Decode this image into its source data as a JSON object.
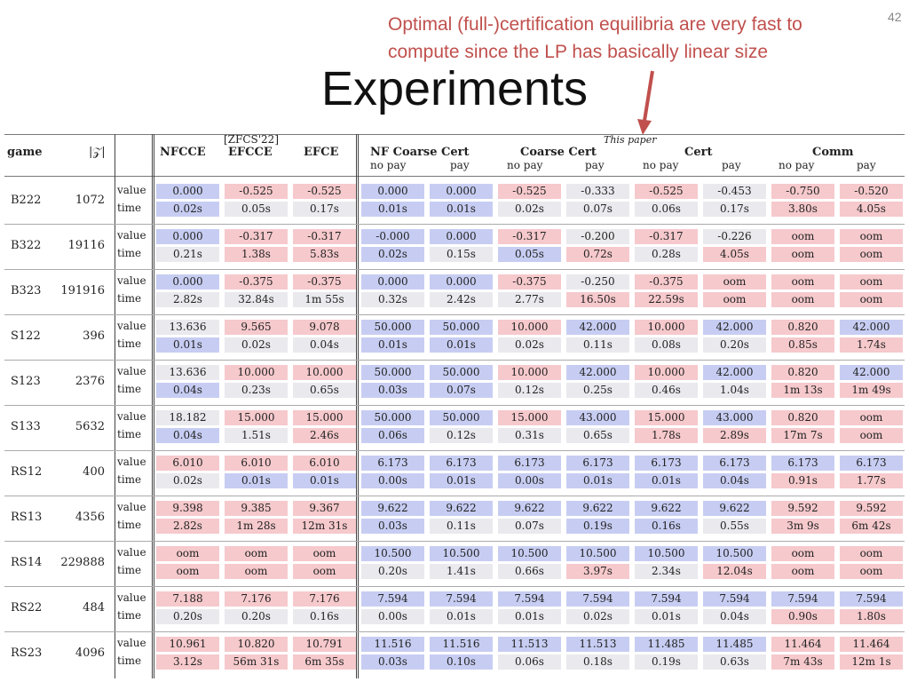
{
  "slide": {
    "title": "Experiments",
    "page_number": "42",
    "annotation_line1": "Optimal (full-)certification equilibria are very fast to",
    "annotation_line2": "compute since the LP has basically linear size",
    "accent_color": "#c0504d"
  },
  "table": {
    "header": {
      "game": "game",
      "z": "|𝒵|",
      "ref": "[ZFCS'22]",
      "this_paper": "This paper",
      "groups": [
        "NFCCE",
        "EFCCE",
        "EFCE",
        "NF Coarse Cert",
        "Coarse Cert",
        "Cert",
        "Comm"
      ],
      "sub": [
        "no pay",
        "pay",
        "no pay",
        "pay",
        "no pay",
        "pay",
        "no pay",
        "pay"
      ]
    },
    "row_labels": {
      "value": "value",
      "time": "time"
    },
    "colors": {
      "red": "#f6c9cc",
      "blue": "#c7cdf2",
      "neutral": "#e9e9ee"
    },
    "rows": [
      {
        "game": "B222",
        "z": "1072",
        "value": [
          "0.000",
          "-0.525",
          "-0.525",
          "0.000",
          "0.000",
          "-0.525",
          "-0.333",
          "-0.525",
          "-0.453",
          "-0.750",
          "-0.520"
        ],
        "time": [
          "0.02s",
          "0.05s",
          "0.17s",
          "0.01s",
          "0.01s",
          "0.02s",
          "0.07s",
          "0.06s",
          "0.17s",
          "3.80s",
          "4.05s"
        ]
      },
      {
        "game": "B322",
        "z": "19116",
        "value": [
          "0.000",
          "-0.317",
          "-0.317",
          "-0.000",
          "0.000",
          "-0.317",
          "-0.200",
          "-0.317",
          "-0.226",
          "oom",
          "oom"
        ],
        "time": [
          "0.21s",
          "1.38s",
          "5.83s",
          "0.02s",
          "0.15s",
          "0.05s",
          "0.72s",
          "0.28s",
          "4.05s",
          "oom",
          "oom"
        ]
      },
      {
        "game": "B323",
        "z": "191916",
        "value": [
          "0.000",
          "-0.375",
          "-0.375",
          "0.000",
          "0.000",
          "-0.375",
          "-0.250",
          "-0.375",
          "oom",
          "oom",
          "oom"
        ],
        "time": [
          "2.82s",
          "32.84s",
          "1m 55s",
          "0.32s",
          "2.42s",
          "2.77s",
          "16.50s",
          "22.59s",
          "oom",
          "oom",
          "oom"
        ]
      },
      {
        "game": "S122",
        "z": "396",
        "value": [
          "13.636",
          "9.565",
          "9.078",
          "50.000",
          "50.000",
          "10.000",
          "42.000",
          "10.000",
          "42.000",
          "0.820",
          "42.000"
        ],
        "time": [
          "0.01s",
          "0.02s",
          "0.04s",
          "0.01s",
          "0.01s",
          "0.02s",
          "0.11s",
          "0.08s",
          "0.20s",
          "0.85s",
          "1.74s"
        ]
      },
      {
        "game": "S123",
        "z": "2376",
        "value": [
          "13.636",
          "10.000",
          "10.000",
          "50.000",
          "50.000",
          "10.000",
          "42.000",
          "10.000",
          "42.000",
          "0.820",
          "42.000"
        ],
        "time": [
          "0.04s",
          "0.23s",
          "0.65s",
          "0.03s",
          "0.07s",
          "0.12s",
          "0.25s",
          "0.46s",
          "1.04s",
          "1m 13s",
          "1m 49s"
        ]
      },
      {
        "game": "S133",
        "z": "5632",
        "value": [
          "18.182",
          "15.000",
          "15.000",
          "50.000",
          "50.000",
          "15.000",
          "43.000",
          "15.000",
          "43.000",
          "0.820",
          "oom"
        ],
        "time": [
          "0.04s",
          "1.51s",
          "2.46s",
          "0.06s",
          "0.12s",
          "0.31s",
          "0.65s",
          "1.78s",
          "2.89s",
          "17m 7s",
          "oom"
        ]
      },
      {
        "game": "RS12",
        "z": "400",
        "value": [
          "6.010",
          "6.010",
          "6.010",
          "6.173",
          "6.173",
          "6.173",
          "6.173",
          "6.173",
          "6.173",
          "6.173",
          "6.173"
        ],
        "time": [
          "0.02s",
          "0.01s",
          "0.01s",
          "0.00s",
          "0.01s",
          "0.00s",
          "0.01s",
          "0.01s",
          "0.04s",
          "0.91s",
          "1.77s"
        ]
      },
      {
        "game": "RS13",
        "z": "4356",
        "value": [
          "9.398",
          "9.385",
          "9.367",
          "9.622",
          "9.622",
          "9.622",
          "9.622",
          "9.622",
          "9.622",
          "9.592",
          "9.592"
        ],
        "time": [
          "2.82s",
          "1m 28s",
          "12m 31s",
          "0.03s",
          "0.11s",
          "0.07s",
          "0.19s",
          "0.16s",
          "0.55s",
          "3m 9s",
          "6m 42s"
        ]
      },
      {
        "game": "RS14",
        "z": "229888",
        "value": [
          "oom",
          "oom",
          "oom",
          "10.500",
          "10.500",
          "10.500",
          "10.500",
          "10.500",
          "10.500",
          "oom",
          "oom"
        ],
        "time": [
          "oom",
          "oom",
          "oom",
          "0.20s",
          "1.41s",
          "0.66s",
          "3.97s",
          "2.34s",
          "12.04s",
          "oom",
          "oom"
        ]
      },
      {
        "game": "RS22",
        "z": "484",
        "value": [
          "7.188",
          "7.176",
          "7.176",
          "7.594",
          "7.594",
          "7.594",
          "7.594",
          "7.594",
          "7.594",
          "7.594",
          "7.594"
        ],
        "time": [
          "0.20s",
          "0.20s",
          "0.16s",
          "0.00s",
          "0.01s",
          "0.01s",
          "0.02s",
          "0.01s",
          "0.04s",
          "0.90s",
          "1.80s"
        ]
      },
      {
        "game": "RS23",
        "z": "4096",
        "value": [
          "10.961",
          "10.820",
          "10.791",
          "11.516",
          "11.516",
          "11.513",
          "11.513",
          "11.485",
          "11.485",
          "11.464",
          "11.464"
        ],
        "time": [
          "3.12s",
          "56m 31s",
          "6m 35s",
          "0.03s",
          "0.10s",
          "0.06s",
          "0.18s",
          "0.19s",
          "0.63s",
          "7m 43s",
          "12m 1s"
        ]
      }
    ],
    "shading": [
      {
        "value": [
          "b",
          "r",
          "r",
          "b",
          "b",
          "r",
          "n",
          "r",
          "n",
          "r",
          "r"
        ],
        "time": [
          "b",
          "n",
          "n",
          "b",
          "b",
          "n",
          "n",
          "n",
          "n",
          "r",
          "r"
        ]
      },
      {
        "value": [
          "b",
          "r",
          "r",
          "b",
          "b",
          "r",
          "n",
          "r",
          "n",
          "r",
          "r"
        ],
        "time": [
          "n",
          "r",
          "r",
          "b",
          "n",
          "b",
          "r",
          "n",
          "r",
          "r",
          "r"
        ]
      },
      {
        "value": [
          "b",
          "r",
          "r",
          "b",
          "b",
          "r",
          "n",
          "r",
          "r",
          "r",
          "r"
        ],
        "time": [
          "n",
          "n",
          "n",
          "n",
          "n",
          "n",
          "r",
          "r",
          "r",
          "r",
          "r"
        ]
      },
      {
        "value": [
          "n",
          "r",
          "r",
          "b",
          "b",
          "r",
          "b",
          "r",
          "b",
          "r",
          "b"
        ],
        "time": [
          "b",
          "n",
          "n",
          "b",
          "b",
          "n",
          "n",
          "n",
          "n",
          "r",
          "r"
        ]
      },
      {
        "value": [
          "n",
          "r",
          "r",
          "b",
          "b",
          "r",
          "b",
          "r",
          "b",
          "r",
          "b"
        ],
        "time": [
          "b",
          "n",
          "n",
          "b",
          "b",
          "n",
          "n",
          "n",
          "n",
          "r",
          "r"
        ]
      },
      {
        "value": [
          "n",
          "r",
          "r",
          "b",
          "b",
          "r",
          "b",
          "r",
          "b",
          "r",
          "r"
        ],
        "time": [
          "b",
          "n",
          "r",
          "b",
          "n",
          "n",
          "n",
          "r",
          "r",
          "r",
          "r"
        ]
      },
      {
        "value": [
          "r",
          "r",
          "r",
          "b",
          "b",
          "b",
          "b",
          "b",
          "b",
          "b",
          "b"
        ],
        "time": [
          "n",
          "b",
          "b",
          "b",
          "b",
          "b",
          "b",
          "b",
          "b",
          "r",
          "r"
        ]
      },
      {
        "value": [
          "r",
          "r",
          "r",
          "b",
          "b",
          "b",
          "b",
          "b",
          "b",
          "r",
          "r"
        ],
        "time": [
          "r",
          "r",
          "r",
          "b",
          "n",
          "n",
          "b",
          "b",
          "n",
          "r",
          "r"
        ]
      },
      {
        "value": [
          "r",
          "r",
          "r",
          "b",
          "b",
          "b",
          "b",
          "b",
          "b",
          "r",
          "r"
        ],
        "time": [
          "r",
          "r",
          "r",
          "n",
          "n",
          "n",
          "r",
          "n",
          "r",
          "r",
          "r"
        ]
      },
      {
        "value": [
          "r",
          "r",
          "r",
          "b",
          "b",
          "b",
          "b",
          "b",
          "b",
          "b",
          "b"
        ],
        "time": [
          "n",
          "n",
          "n",
          "n",
          "n",
          "n",
          "n",
          "n",
          "n",
          "r",
          "r"
        ]
      },
      {
        "value": [
          "r",
          "r",
          "r",
          "b",
          "b",
          "b",
          "b",
          "b",
          "b",
          "r",
          "r"
        ],
        "time": [
          "r",
          "r",
          "r",
          "b",
          "b",
          "n",
          "n",
          "n",
          "n",
          "r",
          "r"
        ]
      }
    ]
  }
}
